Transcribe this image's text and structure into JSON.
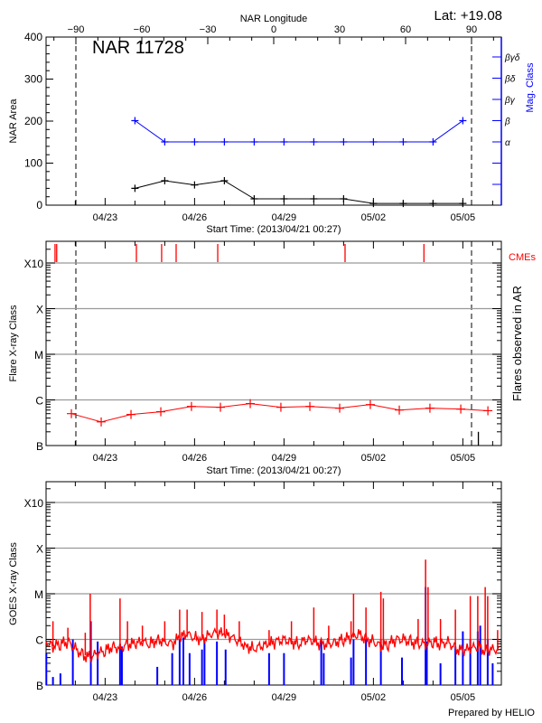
{
  "colors": {
    "area": "#000000",
    "mag_class": "#0000ff",
    "flare": "#ff0000",
    "cme": "#ff0000",
    "goes_long": "#ff0000",
    "goes_short": "#0000ff",
    "grid": "#999999"
  },
  "header": {
    "lat_label": "Lat: +19.08",
    "region_title": "NAR 11728"
  },
  "footer": {
    "credit": "Prepared by HELIO"
  },
  "start_time": "2013/04/21 00:27",
  "x_axis_label": "Start Time: (2013/04/21 00:27)",
  "date_ticks": [
    "04/23",
    "04/26",
    "04/29",
    "05/02",
    "05/05"
  ],
  "chart_data": [
    {
      "type": "line",
      "panel": "NAR",
      "top_axis_label": "NAR Longitude",
      "top_axis_ticks": [
        -90,
        -60,
        -30,
        0,
        30,
        60,
        90
      ],
      "limb_longitudes": [
        -90,
        90
      ],
      "ylabel": "NAR Area",
      "ylim": [
        0,
        400
      ],
      "y_ticks": [
        0,
        100,
        200,
        300,
        400
      ],
      "right_axis_label": "Mag. Class",
      "right_axis_ticks": [
        "",
        "",
        "α",
        "β",
        "βγ",
        "βδ",
        "βγδ"
      ],
      "dates": [
        "04/24 00:00",
        "04/25 00:00",
        "04/26 00:00",
        "04/27 00:00",
        "04/28 00:00",
        "04/29 00:00",
        "04/30 00:00",
        "05/01 00:00",
        "05/02 00:00",
        "05/03 00:00",
        "05/04 00:00",
        "05/05 00:00"
      ],
      "series": [
        {
          "values": [
            40,
            58,
            48,
            58,
            15,
            15,
            15,
            15,
            4,
            4,
            4,
            4
          ]
        },
        {
          "values": [
            "β",
            "α",
            "α",
            "α",
            "α",
            "α",
            "α",
            "α",
            "α",
            "α",
            "α",
            "β"
          ]
        }
      ]
    },
    {
      "type": "line",
      "panel": "flares",
      "ylabel": "Flare X-ray Class",
      "right_axis_label": "Flares observed in AR",
      "y_ticks": [
        "B",
        "C",
        "M",
        "X",
        "X10"
      ],
      "cme_label": "CMEs",
      "cme_times": [
        "04/21 07:40",
        "04/21 09:00",
        "04/24 01:10",
        "04/24 21:30",
        "04/25 09:10",
        "04/26 18:40",
        "05/01 01:10",
        "05/03 16:40"
      ],
      "flares_in_ar": [
        {
          "time": "05/05 12:30",
          "class": "B2.0"
        }
      ],
      "dates": [
        "04/21 20:50",
        "04/22 20:50",
        "04/23 20:50",
        "04/24 20:50",
        "04/25 21:30",
        "04/26 20:50",
        "04/27 20:50",
        "04/28 21:30",
        "04/29 20:50",
        "04/30 20:50",
        "05/01 21:30",
        "05/02 20:50",
        "05/03 21:30",
        "05/04 22:20",
        "05/05 20:10"
      ],
      "values": [
        "B5.0",
        "B3.3",
        "B4.8",
        "B5.5",
        "B7.2",
        "B6.9",
        "B8.3",
        "B6.9",
        "B7.2",
        "B6.6",
        "B7.9",
        "B6.0",
        "B6.6",
        "B6.3",
        "B5.8"
      ]
    },
    {
      "type": "line",
      "panel": "GOES",
      "ylabel": "GOES X-ray Class",
      "y_ticks": [
        "B",
        "C",
        "M",
        "X",
        "X10"
      ],
      "series": [
        {
          "channel": "long",
          "times": [
            "04/21 00:30",
            "04/21 06:00",
            "04/21 12:00",
            "04/21 18:00",
            "04/22 00:00",
            "04/22 06:00",
            "04/22 12:00",
            "04/22 18:00",
            "04/23 00:00",
            "04/23 06:00",
            "04/23 12:00",
            "04/23 18:00",
            "04/24 00:00",
            "04/24 06:00",
            "04/24 12:00",
            "04/24 18:00",
            "04/25 00:00",
            "04/25 06:00",
            "04/25 12:00",
            "04/25 18:00",
            "04/26 00:00",
            "04/26 06:00",
            "04/26 12:00",
            "04/26 18:00",
            "04/27 00:00",
            "04/27 06:00",
            "04/27 12:00",
            "04/27 18:00",
            "04/28 00:00",
            "04/28 06:00",
            "04/28 12:00",
            "04/28 18:00",
            "04/29 00:00",
            "04/29 06:00",
            "04/29 12:00",
            "04/29 18:00",
            "04/30 00:00",
            "04/30 06:00",
            "04/30 12:00",
            "04/30 18:00",
            "05/01 00:00",
            "05/01 06:00",
            "05/01 12:00",
            "05/01 18:00",
            "05/02 00:00",
            "05/02 06:00",
            "05/02 12:00",
            "05/02 18:00",
            "05/03 00:00",
            "05/03 06:00",
            "05/03 12:00",
            "05/03 18:00",
            "05/04 00:00",
            "05/04 06:00",
            "05/04 12:00",
            "05/04 18:00",
            "05/05 00:00",
            "05/05 06:00",
            "05/05 12:00",
            "05/05 18:00",
            "05/06 00:00",
            "05/06 06:00"
          ],
          "values": [
            "B8.9",
            "B7.1",
            "B7.9",
            "B8.9",
            "B6.3",
            "B4.5",
            "B4.0",
            "B5.0",
            "B5.6",
            "B7.1",
            "B6.3",
            "B7.9",
            "B7.9",
            "B8.9",
            "B7.9",
            "C1.0",
            "B8.9",
            "B7.9",
            "C1.1",
            "C1.3",
            "C1.1",
            "C1.0",
            "C1.3",
            "C1.4",
            "C1.3",
            "C1.1",
            "B8.9",
            "B7.1",
            "B6.3",
            "B7.1",
            "B7.9",
            "B8.9",
            "C1.0",
            "B8.9",
            "B7.9",
            "C1.0",
            "B8.9",
            "B7.9",
            "B7.9",
            "B8.9",
            "C1.0",
            "C1.1",
            "C1.3",
            "C1.0",
            "B8.9",
            "B7.1",
            "B7.9",
            "C1.0",
            "C1.0",
            "B8.9",
            "B7.9",
            "B7.9",
            "B8.9",
            "B7.9",
            "B8.9",
            "B6.3",
            "B5.6",
            "B6.3",
            "B7.1",
            "B5.6",
            "B6.3",
            "B5.6"
          ],
          "peaks": [
            [
              "04/21 06:00",
              "C2.5"
            ],
            [
              "04/21 18:00",
              "C1.8"
            ],
            [
              "04/22 08:00",
              "C1.4"
            ],
            [
              "04/22 12:00",
              "M1.0"
            ],
            [
              "04/23 12:00",
              "C7.9"
            ],
            [
              "04/23 18:00",
              "C2.5"
            ],
            [
              "04/24 06:00",
              "C2.0"
            ],
            [
              "04/25 00:00",
              "C2.5"
            ],
            [
              "04/25 12:00",
              "C4.5"
            ],
            [
              "04/25 18:00",
              "C4.5"
            ],
            [
              "04/26 06:00",
              "C4.0"
            ],
            [
              "04/26 18:00",
              "C4.5"
            ],
            [
              "04/27 00:00",
              "C3.5"
            ],
            [
              "04/27 12:00",
              "C2.5"
            ],
            [
              "04/28 12:00",
              "C1.6"
            ],
            [
              "04/29 06:00",
              "C2.5"
            ],
            [
              "04/30 00:00",
              "C5.0"
            ],
            [
              "04/30 12:00",
              "C2.0"
            ],
            [
              "05/01 06:00",
              "C2.5"
            ],
            [
              "05/01 08:00",
              "M1.0"
            ],
            [
              "05/01 18:00",
              "C5.0"
            ],
            [
              "05/02 06:00",
              "M1.1"
            ],
            [
              "05/02 08:00",
              "C7.9"
            ],
            [
              "05/03 12:00",
              "C2.8"
            ],
            [
              "05/03 18:00",
              "M5.6"
            ],
            [
              "05/03 20:00",
              "M1.4"
            ],
            [
              "05/04 06:00",
              "C2.8"
            ],
            [
              "05/04 18:00",
              "C4.5"
            ],
            [
              "05/05 06:00",
              "C8.9"
            ],
            [
              "05/05 12:00",
              "C8.9"
            ],
            [
              "05/05 18:00",
              "M1.4"
            ],
            [
              "05/05 20:00",
              "C8.9"
            ],
            [
              "05/06 04:00",
              "C1.6"
            ]
          ]
        },
        {
          "channel": "short",
          "bars": [
            [
              "04/21 00:40",
              "B5.0"
            ],
            [
              "04/21 06:00",
              "B1.5"
            ],
            [
              "04/21 12:00",
              "B1.8"
            ],
            [
              "04/21 22:00",
              "C1.0"
            ],
            [
              "04/22 12:30",
              "C2.5"
            ],
            [
              "04/22 18:00",
              "B9.0"
            ],
            [
              "04/23 12:00",
              "B8.0"
            ],
            [
              "04/23 13:30",
              "B7.0"
            ],
            [
              "04/24 18:00",
              "B2.5"
            ],
            [
              "04/25 06:00",
              "B5.0"
            ],
            [
              "04/25 12:00",
              "C1.0"
            ],
            [
              "04/25 15:00",
              "C1.1"
            ],
            [
              "04/25 20:00",
              "B5.0"
            ],
            [
              "04/26 06:00",
              "B6.0"
            ],
            [
              "04/26 08:00",
              "B9.0"
            ],
            [
              "04/26 18:00",
              "B9.0"
            ],
            [
              "04/27 01:00",
              "B6.0"
            ],
            [
              "04/28 12:00",
              "B5.0"
            ],
            [
              "04/29 00:00",
              "B5.0"
            ],
            [
              "04/30 06:00",
              "C1.0"
            ],
            [
              "04/30 08:00",
              "B5.0"
            ],
            [
              "05/01 06:00",
              "B4.0"
            ],
            [
              "05/01 08:00",
              "C1.0"
            ],
            [
              "05/01 18:00",
              "C1.0"
            ],
            [
              "05/02 06:00",
              "C1.0"
            ],
            [
              "05/02 23:00",
              "B4.0"
            ],
            [
              "05/03 18:00",
              "M1.4"
            ],
            [
              "05/03 19:00",
              "B9.0"
            ],
            [
              "05/04 06:00",
              "B3.0"
            ],
            [
              "05/04 18:00",
              "B7.0"
            ],
            [
              "05/05 00:00",
              "C1.5"
            ],
            [
              "05/05 06:00",
              "C1.0"
            ],
            [
              "05/05 12:00",
              "C1.5"
            ],
            [
              "05/05 14:00",
              "C2.0"
            ],
            [
              "05/05 20:00",
              "C1.0"
            ],
            [
              "05/06 00:00",
              "B3.0"
            ]
          ]
        }
      ]
    }
  ]
}
